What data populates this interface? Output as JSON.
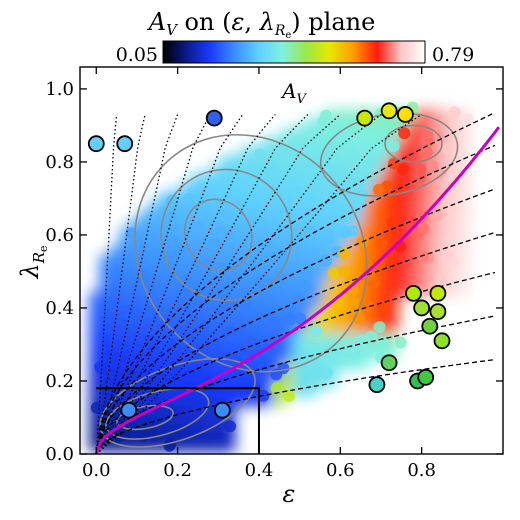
{
  "chart_data": {
    "type": "scatter",
    "title": "A_V on (ε, λ_Re) plane",
    "title_parts": {
      "A": "A",
      "V": "V",
      "rest": " on (",
      "eps": "ε",
      "comma": ", ",
      "lambda": "λ",
      "R": "R",
      "e": "e",
      "close": ") plane"
    },
    "colorbar": {
      "min_label": "0.05",
      "max_label": "0.79",
      "range": [
        0.05,
        0.79
      ],
      "colormap": "jet-to-white",
      "stops": [
        "#000000",
        "#0a1a8c",
        "#1a3cff",
        "#3a8cff",
        "#5fd0ff",
        "#7ff0e0",
        "#9be84a",
        "#e8e800",
        "#ff9a00",
        "#ff1a10",
        "#ffc8c8",
        "#ffffff"
      ]
    },
    "panel_label": {
      "main": "A",
      "sub": "V"
    },
    "xlabel": "ε",
    "ylabel": {
      "main": "λ",
      "sub1": "R",
      "sub2": "e"
    },
    "xlim": [
      -0.04,
      1.0
    ],
    "ylim": [
      0.0,
      1.06
    ],
    "xticks": [
      0.0,
      0.2,
      0.4,
      0.6,
      0.8
    ],
    "xtick_labels": [
      "0.0",
      "0.2",
      "0.4",
      "0.6",
      "0.8"
    ],
    "yticks": [
      0.0,
      0.2,
      0.4,
      0.6,
      0.8,
      1.0
    ],
    "ytick_labels": [
      "0.0",
      "0.2",
      "0.4",
      "0.6",
      "0.8",
      "1.0"
    ],
    "grid": false,
    "magenta_curve": {
      "description": "0.31*sqrt(eps)",
      "color": "#c800c8"
    },
    "box": {
      "x": [
        0.0,
        0.4
      ],
      "y": [
        0.0,
        0.18
      ]
    },
    "outlier_points": [
      {
        "x": 0.29,
        "y": 0.92,
        "color": "#3060e8"
      },
      {
        "x": 0.0,
        "y": 0.85,
        "color": "#5fd0ff"
      },
      {
        "x": 0.07,
        "y": 0.85,
        "color": "#5fd0ff"
      },
      {
        "x": 0.72,
        "y": 0.94,
        "color": "#e8e800"
      },
      {
        "x": 0.66,
        "y": 0.92,
        "color": "#c8e800"
      },
      {
        "x": 0.76,
        "y": 0.93,
        "color": "#ffe000"
      },
      {
        "x": 0.78,
        "y": 0.44,
        "color": "#b0e800"
      },
      {
        "x": 0.8,
        "y": 0.4,
        "color": "#a0e030"
      },
      {
        "x": 0.84,
        "y": 0.44,
        "color": "#c0e800"
      },
      {
        "x": 0.84,
        "y": 0.39,
        "color": "#a8e030"
      },
      {
        "x": 0.82,
        "y": 0.35,
        "color": "#70d040"
      },
      {
        "x": 0.85,
        "y": 0.31,
        "color": "#90e030"
      },
      {
        "x": 0.72,
        "y": 0.25,
        "color": "#60d060"
      },
      {
        "x": 0.79,
        "y": 0.2,
        "color": "#30c050"
      },
      {
        "x": 0.81,
        "y": 0.21,
        "color": "#40c840"
      },
      {
        "x": 0.69,
        "y": 0.19,
        "color": "#4ad0c8"
      },
      {
        "x": 0.31,
        "y": 0.12,
        "color": "#3a8cff"
      },
      {
        "x": 0.08,
        "y": 0.12,
        "color": "#3a8cff"
      }
    ]
  }
}
